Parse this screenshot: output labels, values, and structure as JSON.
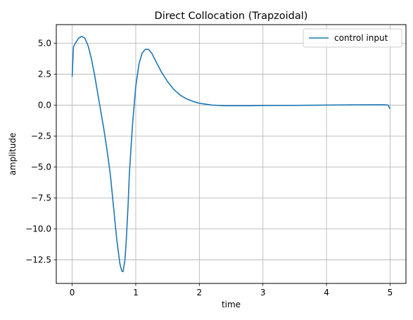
{
  "chart_data": {
    "type": "line",
    "title": "Direct Collocation (Trapzoidal)",
    "xlabel": "time",
    "ylabel": "amplitude",
    "xlim": [
      -0.25,
      5.25
    ],
    "ylim": [
      -14.4,
      6.5
    ],
    "xticks": [
      0,
      1,
      2,
      3,
      4,
      5
    ],
    "xtick_labels": [
      "0",
      "1",
      "2",
      "3",
      "4",
      "5"
    ],
    "yticks": [
      5.0,
      2.5,
      0.0,
      -2.5,
      -5.0,
      -7.5,
      -10.0,
      -12.5
    ],
    "ytick_labels": [
      "5.0",
      "2.5",
      "0.0",
      "−2.5",
      "−5.0",
      "−7.5",
      "−10.0",
      "−12.5"
    ],
    "grid": true,
    "legend_position": "top-right",
    "series": [
      {
        "name": "control input",
        "color": "#1f77b4",
        "x": [
          0,
          0.02,
          0.05,
          0.1,
          0.15,
          0.2,
          0.25,
          0.3,
          0.35,
          0.4,
          0.45,
          0.5,
          0.55,
          0.6,
          0.65,
          0.7,
          0.75,
          0.78,
          0.8,
          0.83,
          0.85,
          0.88,
          0.9,
          0.95,
          1.0,
          1.05,
          1.1,
          1.15,
          1.2,
          1.25,
          1.3,
          1.4,
          1.5,
          1.6,
          1.7,
          1.8,
          1.9,
          2.0,
          2.2,
          2.4,
          2.6,
          2.8,
          3.0,
          3.5,
          4.0,
          4.5,
          4.9,
          4.97,
          5.0
        ],
        "y": [
          2.3,
          4.7,
          5.0,
          5.4,
          5.55,
          5.4,
          4.8,
          3.8,
          2.5,
          1.0,
          -0.5,
          -2.0,
          -3.7,
          -5.6,
          -8.2,
          -10.8,
          -12.8,
          -13.4,
          -13.45,
          -12.5,
          -11.0,
          -8.0,
          -5.5,
          -1.5,
          1.5,
          3.3,
          4.2,
          4.5,
          4.5,
          4.2,
          3.7,
          2.7,
          1.9,
          1.25,
          0.8,
          0.5,
          0.3,
          0.15,
          0.0,
          -0.05,
          -0.05,
          -0.05,
          -0.03,
          -0.02,
          0.0,
          0.02,
          0.03,
          0.0,
          -0.3
        ]
      }
    ]
  }
}
